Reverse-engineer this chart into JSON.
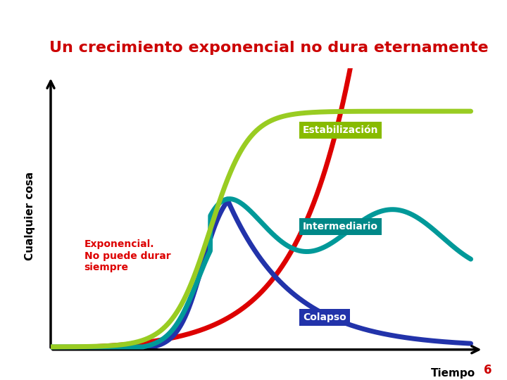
{
  "title": "Un crecimiento exponencial no dura eternamente",
  "title_color": "#cc0000",
  "title_fontsize": 16,
  "xlabel": "Tiempo",
  "ylabel": "Cualquier cosa",
  "background_color": "#ffffff",
  "label_estabilizacion": "Estabilización",
  "label_intermediario": "Intermediario",
  "label_exponencial": "Exponencial.\nNo puede durar\nsiempre",
  "label_colapso": "Colapso",
  "color_estabilizacion": "#99cc22",
  "color_intermediario": "#009999",
  "color_exponencial": "#dd0000",
  "color_colapso": "#2233aa",
  "box_estabilizacion": "#88bb00",
  "box_intermediario": "#008888",
  "box_colapso": "#2233aa",
  "page_number": "6"
}
